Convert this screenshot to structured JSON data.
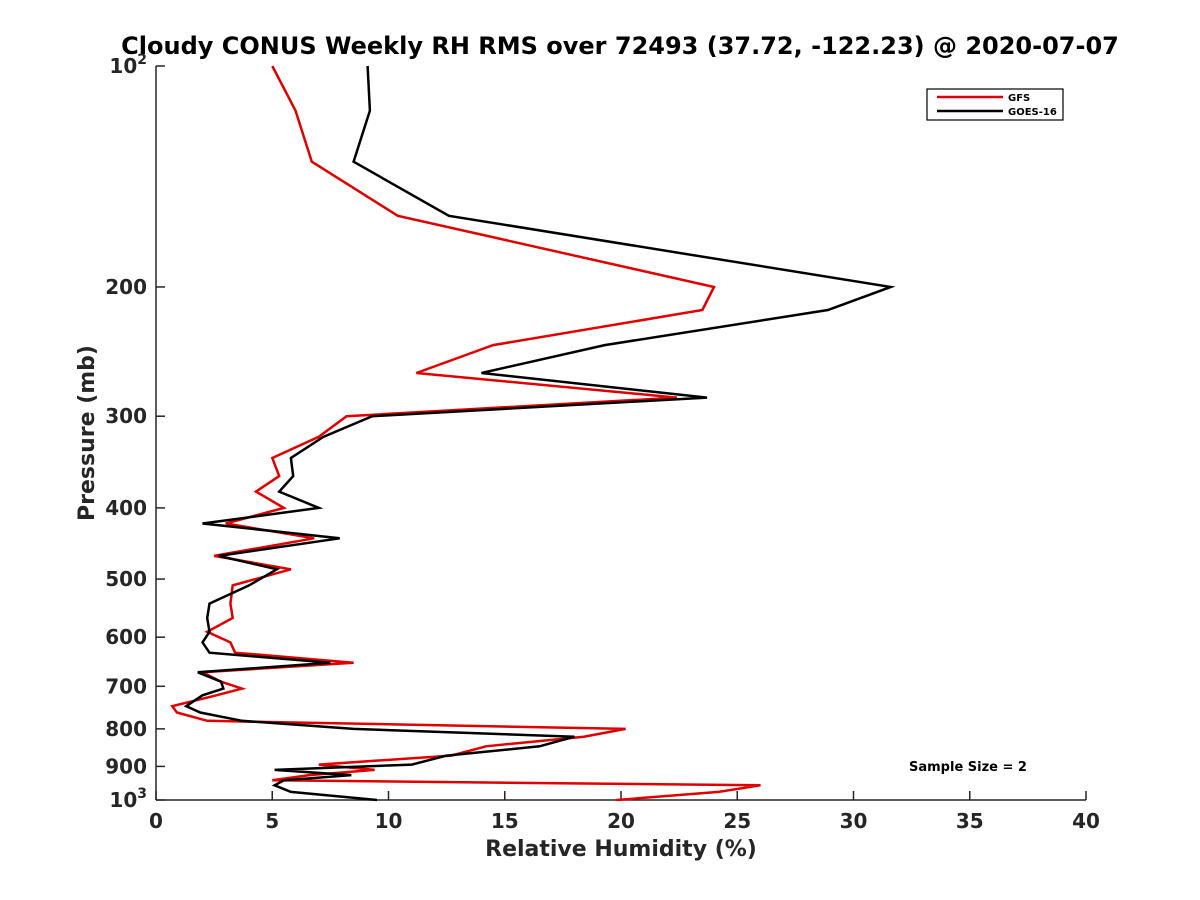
{
  "chart_data": {
    "type": "line",
    "title": "Cloudy CONUS Weekly RH RMS over 72493 (37.72, -122.23) @ 2020-07-07",
    "xlabel": "Relative Humidity (%)",
    "ylabel": "Pressure (mb)",
    "xlim": [
      0,
      40
    ],
    "ylim": [
      100,
      1000
    ],
    "y_scale": "log",
    "y_reversed": true,
    "grid": false,
    "legend_position": "top-right",
    "x_ticks": [
      0,
      5,
      10,
      15,
      20,
      25,
      30,
      35,
      40
    ],
    "x_tick_labels": [
      "0",
      "5",
      "10",
      "15",
      "20",
      "25",
      "30",
      "35",
      "40"
    ],
    "y_ticks": [
      200,
      300,
      400,
      500,
      600,
      700,
      800,
      900
    ],
    "y_tick_labels": [
      "200",
      "300",
      "400",
      "500",
      "600",
      "700",
      "800",
      "900"
    ],
    "y_end_ticks": [
      {
        "value": 100,
        "base": "10",
        "exp": "2"
      },
      {
        "value": 1000,
        "base": "10",
        "exp": "3"
      }
    ],
    "annotation": "Sample Size = 2",
    "series": [
      {
        "name": "GFS",
        "color": "#e00000",
        "points": [
          [
            5.0,
            100
          ],
          [
            6.0,
            115
          ],
          [
            6.7,
            135
          ],
          [
            10.4,
            160
          ],
          [
            24.0,
            200
          ],
          [
            23.5,
            215
          ],
          [
            14.5,
            240
          ],
          [
            11.2,
            262
          ],
          [
            22.4,
            283
          ],
          [
            8.2,
            300
          ],
          [
            7.0,
            320
          ],
          [
            5.0,
            342
          ],
          [
            5.3,
            362
          ],
          [
            4.3,
            380
          ],
          [
            5.5,
            400
          ],
          [
            3.0,
            420
          ],
          [
            6.8,
            440
          ],
          [
            2.5,
            465
          ],
          [
            5.8,
            485
          ],
          [
            3.3,
            510
          ],
          [
            3.2,
            540
          ],
          [
            3.3,
            565
          ],
          [
            2.2,
            590
          ],
          [
            3.2,
            610
          ],
          [
            3.4,
            630
          ],
          [
            8.5,
            650
          ],
          [
            2.0,
            670
          ],
          [
            2.8,
            690
          ],
          [
            3.7,
            705
          ],
          [
            2.6,
            720
          ],
          [
            0.7,
            745
          ],
          [
            0.9,
            760
          ],
          [
            2.2,
            780
          ],
          [
            20.2,
            800
          ],
          [
            18.4,
            820
          ],
          [
            14.2,
            845
          ],
          [
            12.7,
            870
          ],
          [
            7.0,
            895
          ],
          [
            9.4,
            910
          ],
          [
            6.6,
            925
          ],
          [
            5.0,
            940
          ],
          [
            26.0,
            955
          ],
          [
            24.2,
            975
          ],
          [
            19.8,
            1000
          ]
        ]
      },
      {
        "name": "GOES-16",
        "color": "#000000",
        "points": [
          [
            9.1,
            100
          ],
          [
            9.2,
            115
          ],
          [
            8.5,
            135
          ],
          [
            12.6,
            160
          ],
          [
            31.6,
            200
          ],
          [
            28.9,
            215
          ],
          [
            19.3,
            240
          ],
          [
            14.0,
            262
          ],
          [
            23.7,
            283
          ],
          [
            9.3,
            300
          ],
          [
            7.2,
            320
          ],
          [
            5.8,
            342
          ],
          [
            5.9,
            362
          ],
          [
            5.3,
            380
          ],
          [
            7.0,
            400
          ],
          [
            2.0,
            420
          ],
          [
            7.9,
            440
          ],
          [
            2.7,
            465
          ],
          [
            5.2,
            485
          ],
          [
            4.0,
            510
          ],
          [
            2.3,
            540
          ],
          [
            2.2,
            565
          ],
          [
            2.3,
            590
          ],
          [
            2.0,
            610
          ],
          [
            2.3,
            630
          ],
          [
            7.5,
            650
          ],
          [
            1.8,
            670
          ],
          [
            2.8,
            690
          ],
          [
            2.9,
            705
          ],
          [
            2.0,
            720
          ],
          [
            1.3,
            745
          ],
          [
            1.9,
            760
          ],
          [
            3.7,
            780
          ],
          [
            8.5,
            800
          ],
          [
            18.0,
            820
          ],
          [
            16.5,
            845
          ],
          [
            12.5,
            870
          ],
          [
            11.0,
            895
          ],
          [
            5.1,
            910
          ],
          [
            8.4,
            925
          ],
          [
            5.5,
            940
          ],
          [
            5.1,
            955
          ],
          [
            5.8,
            975
          ],
          [
            9.5,
            1000
          ]
        ]
      }
    ]
  }
}
